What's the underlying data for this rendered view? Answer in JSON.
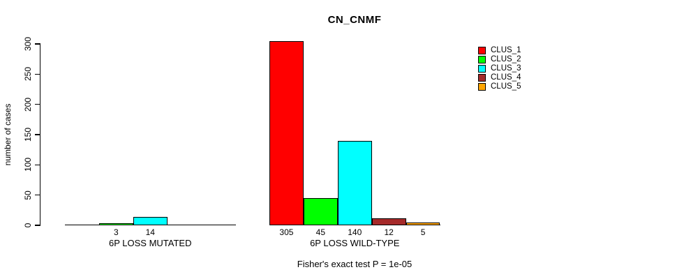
{
  "chart_data": {
    "type": "bar",
    "title": "CN_CNMF",
    "ylabel": "number of cases",
    "xlabel": "",
    "ylim": [
      0,
      300
    ],
    "yticks": [
      0,
      50,
      100,
      150,
      200,
      250,
      300
    ],
    "grid": false,
    "legend_position": "right",
    "legend": [
      {
        "label": "CLUS_1",
        "color": "#ff0000"
      },
      {
        "label": "CLUS_2",
        "color": "#00ff00"
      },
      {
        "label": "CLUS_3",
        "color": "#00ffff"
      },
      {
        "label": "CLUS_4",
        "color": "#a52a2a"
      },
      {
        "label": "CLUS_5",
        "color": "#ffa500"
      }
    ],
    "groups": [
      {
        "label": "6P LOSS MUTATED",
        "values": [
          0,
          3,
          14,
          0,
          0
        ],
        "bar_labels": [
          "",
          "3",
          "14",
          "",
          ""
        ]
      },
      {
        "label": "6P LOSS WILD-TYPE",
        "values": [
          305,
          45,
          140,
          12,
          5
        ],
        "bar_labels": [
          "305",
          "45",
          "140",
          "12",
          "5"
        ]
      }
    ],
    "annotation": "Fisher's exact test P = 1e-05"
  },
  "colors": {
    "axis": "#000000",
    "text": "#000000",
    "background": "#ffffff"
  }
}
